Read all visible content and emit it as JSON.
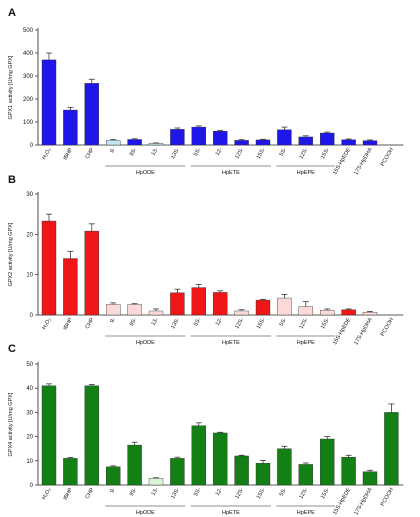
{
  "chart_data": [
    {
      "type": "bar",
      "panel_letter": "A",
      "ylabel": "GPX1 activity [U/mg GPX]",
      "ylim": [
        0,
        500
      ],
      "yticks": [
        0,
        100,
        200,
        300,
        400,
        500
      ],
      "categories": [
        "H₂O₂",
        "tBHP",
        "CHP",
        "9-",
        "9S-",
        "13-",
        "13S-",
        "5S-",
        "12-",
        "12S-",
        "15S-",
        "5S-",
        "12S-",
        "15S-",
        "15S-HpEDE",
        "17S-HpDHA",
        "PCOOH"
      ],
      "values": [
        370,
        152,
        268,
        20,
        24,
        7,
        68,
        78,
        60,
        20,
        22,
        66,
        35,
        52,
        23,
        19,
        0
      ],
      "errors": [
        30,
        12,
        18,
        4,
        3,
        2,
        6,
        5,
        4,
        3,
        3,
        12,
        5,
        4,
        3,
        3,
        0
      ],
      "colors": [
        "#1f16e8",
        "#1f16e8",
        "#1f16e8",
        "#bfe8f2",
        "#1f16e8",
        "#bfe8f2",
        "#1f16e8",
        "#1f16e8",
        "#1f16e8",
        "#1f16e8",
        "#1f16e8",
        "#1f16e8",
        "#1f16e8",
        "#1f16e8",
        "#1f16e8",
        "#1f16e8",
        "#1f16e8"
      ],
      "groups": [
        {
          "label": "HpODE",
          "from": 3,
          "to": 6
        },
        {
          "label": "HpETE",
          "from": 7,
          "to": 10
        },
        {
          "label": "HpEPE",
          "from": 11,
          "to": 13
        }
      ]
    },
    {
      "type": "bar",
      "panel_letter": "B",
      "ylabel": "GPX2 activity [U/mg GPX]",
      "ylim": [
        0,
        30
      ],
      "yticks": [
        0,
        10,
        20,
        30
      ],
      "categories": [
        "H₂O₂",
        "tBHP",
        "CHP",
        "9-",
        "9S-",
        "13-",
        "13S-",
        "5S-",
        "12-",
        "12S-",
        "15S-",
        "5S-",
        "12S-",
        "15S-",
        "15S-HpEDE",
        "17S-HpDHA",
        "PCOOH"
      ],
      "values": [
        23.3,
        14,
        20.8,
        2.6,
        2.6,
        1,
        5.5,
        6.8,
        5.6,
        1,
        3.7,
        4.2,
        2.1,
        1.2,
        1.3,
        0.7,
        0
      ],
      "errors": [
        1.7,
        1.8,
        1.8,
        0.4,
        0.2,
        0.5,
        0.9,
        0.8,
        0.4,
        0.3,
        0.2,
        0.9,
        1.2,
        0.3,
        0.2,
        0.2,
        0
      ],
      "colors": [
        "#ee1616",
        "#ee1616",
        "#ee1616",
        "#fcd9d9",
        "#fcd9d9",
        "#fcd9d9",
        "#ee1616",
        "#ee1616",
        "#ee1616",
        "#fcd9d9",
        "#ee1616",
        "#fcd9d9",
        "#fcd9d9",
        "#fcd9d9",
        "#ee1616",
        "#fcd9d9",
        "#ee1616"
      ],
      "groups": [
        {
          "label": "HpODE",
          "from": 3,
          "to": 6
        },
        {
          "label": "HpETE",
          "from": 7,
          "to": 10
        },
        {
          "label": "HpEPE",
          "from": 11,
          "to": 13
        }
      ]
    },
    {
      "type": "bar",
      "panel_letter": "C",
      "ylabel": "GPX4 activity [U/mg GPX]",
      "ylim": [
        0,
        50
      ],
      "yticks": [
        0,
        10,
        20,
        30,
        40,
        50
      ],
      "categories": [
        "H₂O₂",
        "tBHP",
        "CHP",
        "9-",
        "9S-",
        "13-",
        "13S-",
        "5S-",
        "12-",
        "12S-",
        "15S-",
        "5S-",
        "12S-",
        "15S-",
        "15S-HpEDE",
        "17S-HpDHA",
        "PCOOH"
      ],
      "values": [
        41,
        11,
        41,
        7.5,
        16.5,
        2.8,
        11,
        24.5,
        21.5,
        12,
        9,
        15,
        8.5,
        19,
        11.5,
        5.5,
        30
      ],
      "errors": [
        0.8,
        0.4,
        0.6,
        0.4,
        1.2,
        0.2,
        0.5,
        1.2,
        0.3,
        0.3,
        1.2,
        1,
        0.6,
        1,
        0.8,
        0.6,
        3.5
      ],
      "colors": [
        "#137f14",
        "#137f14",
        "#137f14",
        "#137f14",
        "#137f14",
        "#d8f5d8",
        "#137f14",
        "#137f14",
        "#137f14",
        "#137f14",
        "#137f14",
        "#137f14",
        "#137f14",
        "#137f14",
        "#137f14",
        "#137f14",
        "#137f14"
      ],
      "groups": [
        {
          "label": "HpODE",
          "from": 3,
          "to": 6
        },
        {
          "label": "HpETE",
          "from": 7,
          "to": 10
        },
        {
          "label": "HpEPE",
          "from": 11,
          "to": 13
        }
      ]
    }
  ],
  "style": {
    "axis_color": "#222222",
    "text_color": "#111111",
    "edge_color": "#333333"
  }
}
